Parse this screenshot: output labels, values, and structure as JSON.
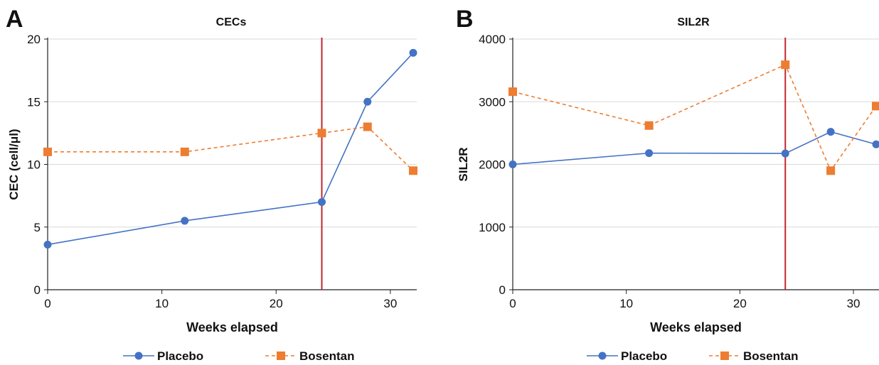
{
  "panels": [
    {
      "letter": "A",
      "chart_data": {
        "type": "line",
        "title": "CECs",
        "xlabel": "Weeks elapsed",
        "ylabel": "CEC (cell/μl)",
        "xlim": [
          0,
          32
        ],
        "ylim": [
          0,
          20
        ],
        "xticks": [
          0,
          10,
          20,
          30
        ],
        "yticks": [
          0,
          5,
          10,
          15,
          20
        ],
        "grid": "horizontal",
        "legend_position": "bottom",
        "reference_line_x": 24,
        "series": [
          {
            "name": "Placebo",
            "color": "#4472C4",
            "style": "solid",
            "marker": "circle",
            "x": [
              0,
              12,
              24,
              28,
              32
            ],
            "y": [
              3.6,
              5.5,
              7.0,
              15.0,
              18.9
            ]
          },
          {
            "name": "Bosentan",
            "color": "#ED7D31",
            "style": "dashed",
            "marker": "square",
            "x": [
              0,
              12,
              24,
              28,
              32
            ],
            "y": [
              11.0,
              11.0,
              12.5,
              13.0,
              9.5
            ]
          }
        ]
      }
    },
    {
      "letter": "B",
      "chart_data": {
        "type": "line",
        "title": "SIL2R",
        "xlabel": "Weeks elapsed",
        "ylabel": "SIL2R",
        "xlim": [
          0,
          32
        ],
        "ylim": [
          0,
          4000
        ],
        "xticks": [
          0,
          10,
          20,
          30
        ],
        "yticks": [
          0,
          1000,
          2000,
          3000,
          4000
        ],
        "grid": "horizontal",
        "legend_position": "bottom",
        "reference_line_x": 24,
        "series": [
          {
            "name": "Placebo",
            "color": "#4472C4",
            "style": "solid",
            "marker": "circle",
            "x": [
              0,
              12,
              24,
              28,
              32
            ],
            "y": [
              2000,
              2180,
              2175,
              2520,
              2320
            ]
          },
          {
            "name": "Bosentan",
            "color": "#ED7D31",
            "style": "dashed",
            "marker": "square",
            "x": [
              0,
              12,
              24,
              28,
              32
            ],
            "y": [
              3160,
              2620,
              3590,
              1900,
              2930
            ]
          }
        ]
      }
    }
  ],
  "colors": {
    "reference_line": "#C0272D",
    "grid": "#d9d9d9",
    "axis": "#222222"
  }
}
